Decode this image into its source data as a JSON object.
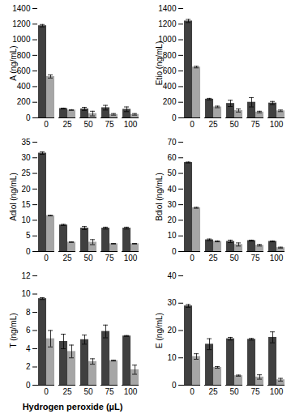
{
  "chart_data": [
    {
      "type": "bar",
      "y_label": "A (ng/mL)",
      "categories": [
        0,
        25,
        50,
        75,
        100
      ],
      "ylim": [
        0,
        1400
      ],
      "yticks": [
        0,
        200,
        400,
        600,
        800,
        1000,
        1200,
        1400
      ],
      "series": [
        {
          "color": "#404040",
          "values": [
            1180,
            120,
            115,
            130,
            110
          ],
          "errors": [
            15,
            5,
            20,
            30,
            30
          ]
        },
        {
          "color": "#a6a6a6",
          "values": [
            530,
            100,
            55,
            45,
            45
          ],
          "errors": [
            20,
            5,
            30,
            10,
            10
          ]
        }
      ]
    },
    {
      "type": "bar",
      "y_label": "Etio (ng/mL)",
      "categories": [
        0,
        25,
        50,
        75,
        100
      ],
      "ylim": [
        0,
        1400
      ],
      "yticks": [
        0,
        200,
        400,
        600,
        800,
        1000,
        1200,
        1400
      ],
      "series": [
        {
          "color": "#404040",
          "values": [
            1240,
            240,
            185,
            200,
            190
          ],
          "errors": [
            20,
            10,
            40,
            60,
            20
          ]
        },
        {
          "color": "#a6a6a6",
          "values": [
            650,
            140,
            95,
            75,
            90
          ],
          "errors": [
            10,
            10,
            20,
            10,
            10
          ]
        }
      ]
    },
    {
      "type": "bar",
      "y_label": "Adiol (ng/mL)",
      "categories": [
        0,
        25,
        50,
        75,
        100
      ],
      "ylim": [
        0,
        35
      ],
      "yticks": [
        0,
        5,
        10,
        15,
        20,
        25,
        30,
        35
      ],
      "series": [
        {
          "color": "#404040",
          "values": [
            31.5,
            8.5,
            7.5,
            7.5,
            7.5
          ],
          "errors": [
            0.4,
            0.2,
            0.5,
            0.3,
            0.3
          ]
        },
        {
          "color": "#a6a6a6",
          "values": [
            11.5,
            3,
            3,
            2.5,
            2.5
          ],
          "errors": [
            0.1,
            0.1,
            0.8,
            0.1,
            0.1
          ]
        }
      ]
    },
    {
      "type": "bar",
      "y_label": "Bdiol (ng/mL)",
      "categories": [
        0,
        25,
        50,
        75,
        100
      ],
      "ylim": [
        0,
        70
      ],
      "yticks": [
        0,
        10,
        20,
        30,
        40,
        50,
        60,
        70
      ],
      "series": [
        {
          "color": "#404040",
          "values": [
            57,
            7.5,
            6.5,
            7,
            6.5
          ],
          "errors": [
            0.3,
            0.5,
            0.8,
            0.3,
            0.3
          ]
        },
        {
          "color": "#a6a6a6",
          "values": [
            28,
            6.5,
            4.5,
            4,
            2.5
          ],
          "errors": [
            0.3,
            0.3,
            1,
            0.5,
            0.3
          ]
        }
      ]
    },
    {
      "type": "bar",
      "y_label": "T (ng/mL)",
      "x_label": "Hydrogen peroxide (µL)",
      "categories": [
        0,
        25,
        50,
        75,
        100
      ],
      "ylim": [
        0,
        12
      ],
      "yticks": [
        0,
        2,
        4,
        6,
        8,
        10,
        12
      ],
      "series": [
        {
          "color": "#404040",
          "values": [
            9.5,
            4.8,
            5,
            5.9,
            5.4
          ],
          "errors": [
            0.1,
            0.8,
            0.5,
            0.7,
            0.05
          ]
        },
        {
          "color": "#a6a6a6",
          "values": [
            5.1,
            3.7,
            2.6,
            2.7,
            1.7
          ],
          "errors": [
            0.9,
            0.7,
            0.3,
            0.05,
            0.5
          ]
        }
      ]
    },
    {
      "type": "bar",
      "y_label": "E (ng/mL)",
      "categories": [
        0,
        25,
        50,
        75,
        100
      ],
      "ylim": [
        0,
        40
      ],
      "yticks": [
        0,
        10,
        20,
        30,
        40
      ],
      "series": [
        {
          "color": "#404040",
          "values": [
            29,
            15,
            17,
            16.8,
            17.5
          ],
          "errors": [
            0.5,
            2,
            0.5,
            0.3,
            2
          ]
        },
        {
          "color": "#a6a6a6",
          "values": [
            10.5,
            6.5,
            3.5,
            3,
            2
          ],
          "errors": [
            1,
            0.3,
            0.2,
            0.8,
            0.5
          ]
        }
      ]
    }
  ]
}
